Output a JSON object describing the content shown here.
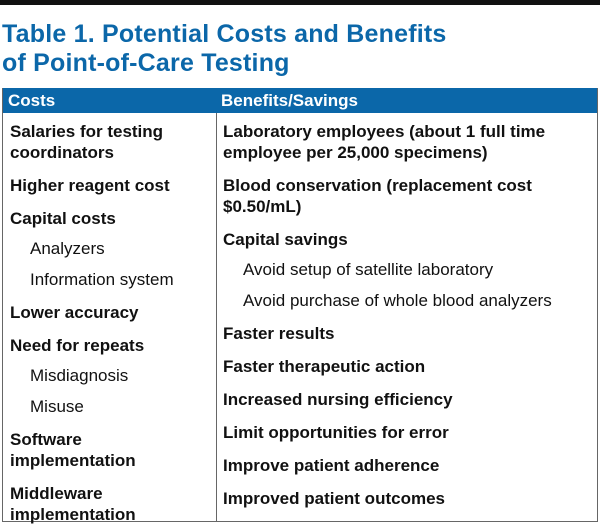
{
  "title_line1": "Table 1. Potential Costs and Benefits",
  "title_line2": "of Point-of-Care Testing",
  "colors": {
    "accent": "#0b67a9",
    "border": "#666666"
  },
  "headers": [
    "Costs",
    "Benefits/Savings"
  ],
  "costs": [
    {
      "text": "Salaries for testing coordinators",
      "level": 0
    },
    {
      "text": "Higher reagent cost",
      "level": 0
    },
    {
      "text": "Capital costs",
      "level": 0
    },
    {
      "text": "Analyzers",
      "level": 1
    },
    {
      "text": "Information system",
      "level": 1
    },
    {
      "text": "Lower accuracy",
      "level": 0
    },
    {
      "text": "Need for repeats",
      "level": 0
    },
    {
      "text": "Misdiagnosis",
      "level": 1
    },
    {
      "text": "Misuse",
      "level": 1
    },
    {
      "text": "Software implementation",
      "level": 0
    },
    {
      "text": "Middleware implementation",
      "level": 0
    }
  ],
  "benefits": [
    {
      "text": "Laboratory employees (about 1 full time employee per 25,000 specimens)",
      "level": 0
    },
    {
      "text": "Blood conservation (replacement cost $0.50/mL)",
      "level": 0
    },
    {
      "text": "Capital savings",
      "level": 0
    },
    {
      "text": "Avoid setup of satellite laboratory",
      "level": 1
    },
    {
      "text": "Avoid purchase of whole blood analyzers",
      "level": 1
    },
    {
      "text": "Faster results",
      "level": 0
    },
    {
      "text": "Faster therapeutic action",
      "level": 0
    },
    {
      "text": "Increased nursing efficiency",
      "level": 0
    },
    {
      "text": "Limit opportunities for error",
      "level": 0
    },
    {
      "text": "Improve patient adherence",
      "level": 0
    },
    {
      "text": "Improved patient outcomes",
      "level": 0
    }
  ]
}
